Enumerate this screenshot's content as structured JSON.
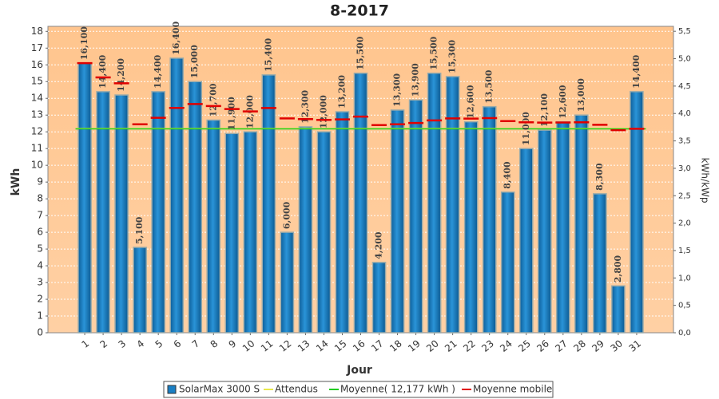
{
  "chart_data": {
    "type": "bar",
    "title": "8-2017",
    "x_label": "Jour",
    "y_label": "kWh",
    "y2_label": "kWh/kWp",
    "categories": [
      "1",
      "2",
      "3",
      "4",
      "5",
      "6",
      "7",
      "8",
      "9",
      "10",
      "11",
      "12",
      "13",
      "14",
      "15",
      "16",
      "17",
      "18",
      "19",
      "20",
      "21",
      "22",
      "23",
      "24",
      "25",
      "26",
      "27",
      "28",
      "29",
      "30",
      "31"
    ],
    "series": [
      {
        "name": "SolarMax 3000 S",
        "color": "#1a7fc4",
        "values": [
          16.1,
          14.4,
          14.2,
          5.1,
          14.4,
          16.4,
          15,
          12.7,
          11.9,
          12,
          15.4,
          6,
          12.3,
          12,
          13.2,
          15.5,
          4.2,
          13.3,
          13.9,
          15.5,
          15.3,
          12.6,
          13.5,
          8.4,
          11,
          12.1,
          12.6,
          13,
          8.3,
          2.8,
          14.4
        ],
        "value_labels": [
          "16,100",
          "14,400",
          "14,200",
          "5,100",
          "14,400",
          "16,400",
          "15,000",
          "12,700",
          "11,900",
          "12,000",
          "15,400",
          "6,000",
          "12,300",
          "12,000",
          "13,200",
          "15,500",
          "4,200",
          "13,300",
          "13,900",
          "15,500",
          "15,300",
          "12,600",
          "13,500",
          "8,400",
          "11,000",
          "12,100",
          "12,600",
          "13,000",
          "8,300",
          "2,800",
          "14,400"
        ]
      },
      {
        "name": "Moyenne mobile",
        "color": "#e00000",
        "values": [
          16.1,
          15.25,
          14.9,
          12.45,
          12.84,
          13.43,
          13.66,
          13.54,
          13.36,
          13.22,
          13.42,
          12.8,
          12.76,
          12.71,
          12.74,
          12.91,
          12.4,
          12.45,
          12.53,
          12.68,
          12.8,
          12.79,
          12.82,
          12.64,
          12.57,
          12.55,
          12.56,
          12.57,
          12.42,
          12.1,
          12.18
        ]
      }
    ],
    "reference_lines": [
      {
        "name": "Attendus",
        "color": "#e8e84a",
        "value": 12.2
      },
      {
        "name": "Moyenne( 12,177 kWh )",
        "color": "#22cc22",
        "value": 12.177
      }
    ],
    "ylim": [
      0,
      18.3
    ],
    "yticks": [
      0,
      1,
      2,
      3,
      4,
      5,
      6,
      7,
      8,
      9,
      10,
      11,
      12,
      13,
      14,
      15,
      16,
      17,
      18
    ],
    "y2lim": [
      0,
      5.59
    ],
    "y2ticks": [
      {
        "value": 0,
        "label": "0,0"
      },
      {
        "value": 0.5,
        "label": "0,5"
      },
      {
        "value": 1,
        "label": "1,0"
      },
      {
        "value": 1.5,
        "label": "1,5"
      },
      {
        "value": 2,
        "label": "2,0"
      },
      {
        "value": 2.5,
        "label": "2,5"
      },
      {
        "value": 3,
        "label": "3,0"
      },
      {
        "value": 3.5,
        "label": "3,5"
      },
      {
        "value": 4,
        "label": "4,0"
      },
      {
        "value": 4.5,
        "label": "4,5"
      },
      {
        "value": 5,
        "label": "5,0"
      },
      {
        "value": 5.5,
        "label": "5,5"
      }
    ],
    "grid": true
  }
}
